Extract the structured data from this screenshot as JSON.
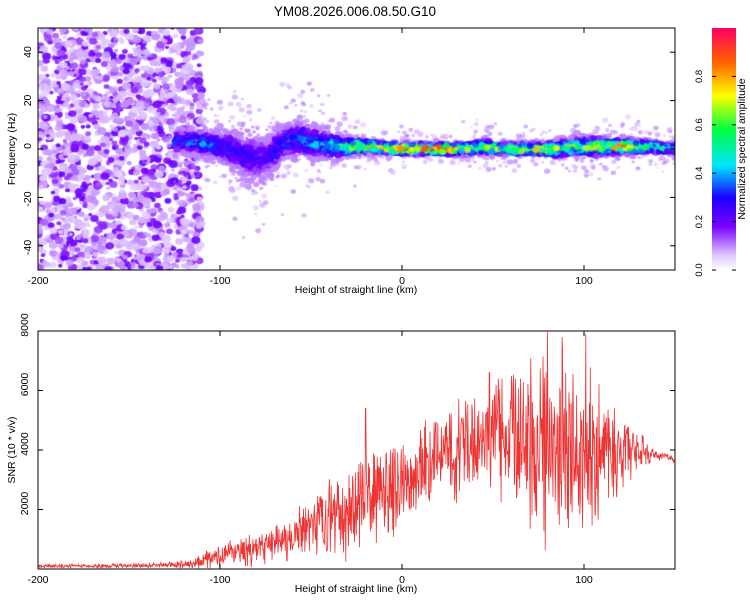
{
  "title": "YM08.2026.006.08.50.G10",
  "chart_data": [
    {
      "type": "heatmap",
      "title": "YM08.2026.006.08.50.G10",
      "xlabel": "Height of straight line (km)",
      "ylabel": "Frequency (Hz)",
      "xlim": [
        -200,
        150
      ],
      "ylim": [
        -50,
        50
      ],
      "xticks": [
        "-200",
        "-100",
        "0",
        "100"
      ],
      "xtick_values": [
        -200,
        -100,
        0,
        100
      ],
      "yticks": [
        "-40",
        "-20",
        "0",
        "20",
        "40"
      ],
      "ytick_values": [
        -40,
        -20,
        0,
        20,
        40
      ],
      "colorbar": {
        "label": "Normalized spectral amplitude",
        "range": [
          0,
          1
        ],
        "ticks": [
          "0.0",
          "0.2",
          "0.4",
          "0.6",
          "0.8"
        ],
        "tick_values": [
          0.0,
          0.2,
          0.4,
          0.6,
          0.8
        ],
        "colors": [
          "#ffffff",
          "#e0c8ff",
          "#7a00ff",
          "#1a00ff",
          "#00e5ff",
          "#00ff40",
          "#ffff00",
          "#ff6000",
          "#ff0060"
        ]
      },
      "noise_region_x": [
        -200,
        -110
      ],
      "ridge": {
        "x": [
          -125,
          -115,
          -105,
          -95,
          -85,
          -75,
          -65,
          -55,
          -45,
          -35,
          -25,
          -15,
          -5,
          5,
          15,
          25,
          35,
          45,
          55,
          65,
          75,
          85,
          95,
          105,
          115,
          125,
          135,
          150
        ],
        "center_hz": [
          3,
          3,
          2,
          0,
          -3,
          -4,
          3,
          4,
          2,
          1,
          1,
          1,
          0,
          0,
          0,
          0,
          0,
          1,
          0,
          0,
          0,
          0,
          1,
          1,
          1,
          1,
          1,
          0
        ],
        "spread_hz": [
          6,
          6,
          7,
          9,
          12,
          10,
          9,
          9,
          8,
          6,
          4,
          3,
          3,
          3,
          3,
          3,
          3,
          4,
          3,
          3,
          3,
          4,
          5,
          5,
          4,
          4,
          3,
          3
        ],
        "peak_amplitude": [
          0.35,
          0.4,
          0.38,
          0.32,
          0.3,
          0.28,
          0.35,
          0.4,
          0.42,
          0.55,
          0.75,
          0.9,
          0.85,
          0.9,
          0.95,
          0.92,
          0.7,
          0.65,
          0.7,
          0.8,
          0.75,
          0.7,
          0.6,
          0.75,
          0.8,
          0.85,
          0.6,
          0.45
        ]
      }
    },
    {
      "type": "line",
      "xlabel": "Height of straight line (km)",
      "ylabel": "SNR (10 * v/v)",
      "xlim": [
        -200,
        150
      ],
      "ylim": [
        0,
        8000
      ],
      "xticks": [
        "-200",
        "-100",
        "0",
        "100"
      ],
      "xtick_values": [
        -200,
        -100,
        0,
        100
      ],
      "yticks": [
        "2000",
        "4000",
        "6000",
        "8000"
      ],
      "ytick_values": [
        2000,
        4000,
        6000,
        8000
      ],
      "series": [
        {
          "name": "SNR",
          "color": "#ee3333",
          "x": [
            -200,
            -180,
            -160,
            -140,
            -130,
            -120,
            -110,
            -100,
            -90,
            -80,
            -70,
            -60,
            -50,
            -40,
            -30,
            -20,
            -10,
            0,
            10,
            20,
            30,
            40,
            50,
            60,
            70,
            80,
            90,
            100,
            110,
            120,
            130,
            140,
            150
          ],
          "mean": [
            100,
            100,
            100,
            110,
            120,
            160,
            260,
            450,
            550,
            700,
            800,
            1000,
            1300,
            1700,
            1900,
            2400,
            2600,
            2900,
            3300,
            3800,
            4000,
            4300,
            4500,
            4500,
            4200,
            4200,
            4000,
            4000,
            4200,
            3800,
            4000,
            3800,
            3700
          ],
          "amplitude": [
            80,
            80,
            90,
            100,
            110,
            180,
            300,
            500,
            600,
            700,
            800,
            900,
            1300,
            1500,
            1700,
            2000,
            1800,
            1800,
            1800,
            1800,
            2000,
            2000,
            2600,
            2400,
            3200,
            4000,
            3600,
            3600,
            2600,
            1700,
            700,
            200,
            150
          ],
          "spikes": [
            [
              -20,
              5400
            ],
            [
              48,
              6600
            ],
            [
              80,
              8000
            ],
            [
              88,
              7800
            ],
            [
              101,
              7900
            ]
          ],
          "points": 1400
        }
      ]
    }
  ]
}
